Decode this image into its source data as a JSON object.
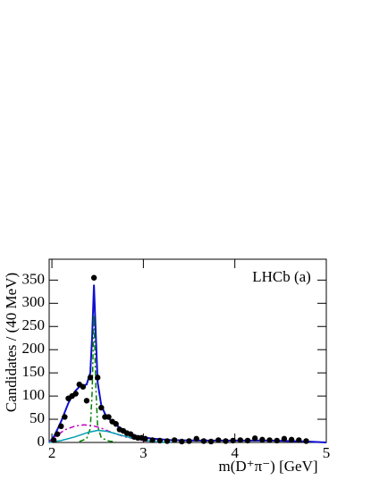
{
  "chart_data": {
    "type": "scatter",
    "annotation": "LHCb (a)",
    "xlabel": "m(D⁺π⁻) [GeV]",
    "ylabel": "Candidates / (40 MeV)",
    "xlim": [
      1.97,
      5
    ],
    "xticks": [
      2,
      3,
      4,
      5
    ],
    "ylim": [
      0,
      395
    ],
    "yticks": [
      0,
      50,
      100,
      150,
      200,
      250,
      300,
      350
    ],
    "marker_color": "#000000",
    "x": [
      2.02,
      2.06,
      2.1,
      2.14,
      2.18,
      2.22,
      2.26,
      2.3,
      2.34,
      2.38,
      2.42,
      2.46,
      2.5,
      2.54,
      2.58,
      2.62,
      2.66,
      2.7,
      2.74,
      2.78,
      2.82,
      2.86,
      2.9,
      2.94,
      2.98,
      3.02,
      3.1,
      3.18,
      3.26,
      3.34,
      3.42,
      3.5,
      3.58,
      3.66,
      3.74,
      3.82,
      3.9,
      3.98,
      4.06,
      4.14,
      4.22,
      4.3,
      4.38,
      4.46,
      4.54,
      4.62,
      4.7,
      4.78
    ],
    "values": [
      5,
      18,
      35,
      55,
      95,
      100,
      105,
      125,
      120,
      90,
      140,
      355,
      140,
      75,
      55,
      55,
      45,
      40,
      28,
      25,
      20,
      18,
      12,
      10,
      10,
      8,
      5,
      4,
      3,
      5,
      2,
      3,
      8,
      3,
      2,
      5,
      3,
      4,
      5,
      4,
      9,
      6,
      5,
      4,
      8,
      6,
      5,
      3
    ],
    "curves": [
      {
        "color": "#1010d0",
        "dash": "",
        "x": [
          1.97,
          2.02,
          2.06,
          2.1,
          2.14,
          2.18,
          2.22,
          2.26,
          2.3,
          2.34,
          2.38,
          2.42,
          2.44,
          2.46,
          2.48,
          2.5,
          2.54,
          2.58,
          2.62,
          2.66,
          2.7,
          2.78,
          2.86,
          2.94,
          3.1,
          3.3,
          3.6,
          4.0,
          4.4,
          4.8,
          5.0
        ],
        "values": [
          0,
          12,
          28,
          45,
          65,
          85,
          100,
          112,
          120,
          122,
          125,
          150,
          230,
          340,
          230,
          130,
          80,
          62,
          52,
          45,
          38,
          27,
          19,
          13,
          8,
          5,
          4,
          4,
          4,
          2,
          0
        ]
      },
      {
        "color": "#008000",
        "dash": "6 3 2 3",
        "x": [
          2.3,
          2.38,
          2.42,
          2.44,
          2.46,
          2.48,
          2.5,
          2.54,
          2.62,
          2.7
        ],
        "values": [
          2,
          8,
          30,
          110,
          275,
          120,
          35,
          10,
          3,
          1
        ]
      },
      {
        "color": "#c000c0",
        "dash": "6 3 2 3",
        "x": [
          1.97,
          2.05,
          2.15,
          2.25,
          2.35,
          2.45,
          2.55,
          2.65,
          2.8,
          3.0,
          3.2
        ],
        "values": [
          0,
          15,
          28,
          35,
          38,
          36,
          30,
          22,
          12,
          4,
          0
        ]
      },
      {
        "color": "#00a0b0",
        "dash": "",
        "x": [
          1.97,
          2.1,
          2.25,
          2.4,
          2.5,
          2.6,
          2.75,
          2.9,
          3.1,
          3.3
        ],
        "values": [
          0,
          4,
          12,
          22,
          26,
          24,
          16,
          8,
          2,
          0
        ]
      }
    ]
  }
}
